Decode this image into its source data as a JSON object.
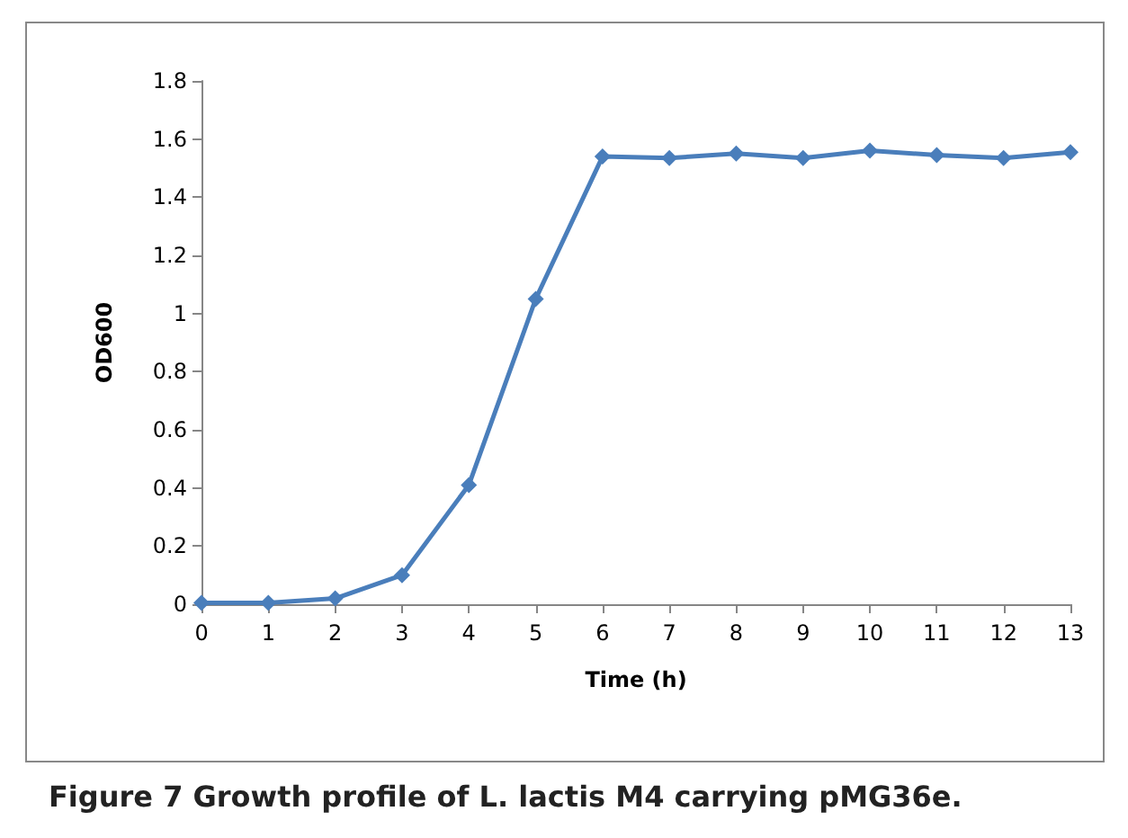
{
  "chart_data": {
    "type": "line",
    "title": "Figure 7 Growth profile of L. lactis M4 carrying pMG36e.",
    "xlabel": "Time (h)",
    "ylabel": "OD600",
    "x": [
      0,
      1,
      2,
      3,
      4,
      5,
      6,
      7,
      8,
      9,
      10,
      11,
      12,
      13
    ],
    "series": [
      {
        "color": "#4a7ebb",
        "values": [
          0.005,
          0.005,
          0.02,
          0.1,
          0.41,
          1.05,
          1.54,
          1.535,
          1.55,
          1.535,
          1.56,
          1.545,
          1.535,
          1.555
        ]
      }
    ],
    "xlim": [
      0,
      13
    ],
    "xticks": [
      0,
      1,
      2,
      3,
      4,
      5,
      6,
      7,
      8,
      9,
      10,
      11,
      12,
      13
    ],
    "ylim": [
      0,
      1.8
    ],
    "yticks": [
      0,
      0.2,
      0.4,
      0.6,
      0.8,
      1,
      1.2,
      1.4,
      1.6,
      1.8
    ],
    "grid": false,
    "marker": "diamond",
    "line_style": "solid"
  }
}
